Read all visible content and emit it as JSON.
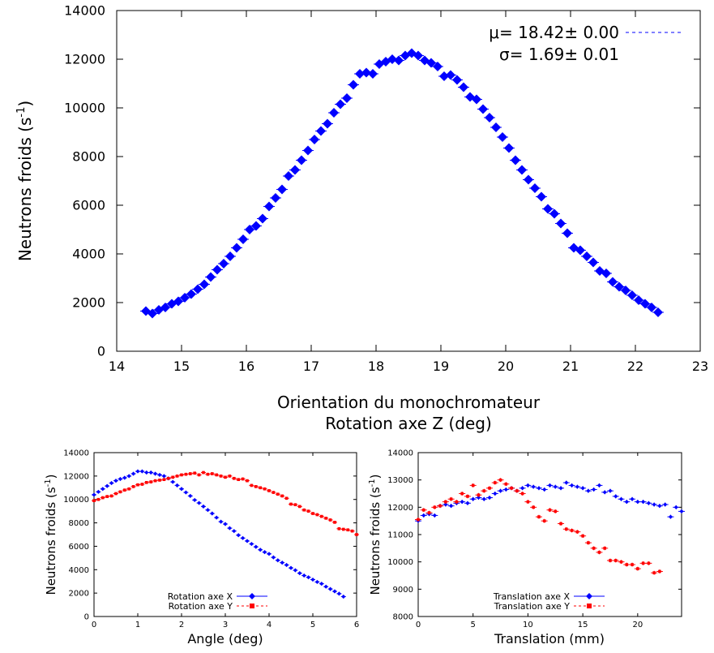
{
  "chart_data": [
    {
      "type": "scatter",
      "xlabel_line1": "Orientation du monochromateur",
      "xlabel_line2": "Rotation axe Z (deg)",
      "ylabel": "Neutrons froids (s",
      "ylabel_sup": "-1",
      "ylabel_end": ")",
      "xlim": [
        14,
        23
      ],
      "ylim": [
        0,
        14000
      ],
      "xticks": [
        14,
        15,
        16,
        17,
        18,
        19,
        20,
        21,
        22,
        23
      ],
      "yticks": [
        0,
        2000,
        4000,
        6000,
        8000,
        10000,
        12000,
        14000
      ],
      "grid": false,
      "legend_position": "top-right",
      "annotations": [
        "μ= 18.42± 0.00",
        "σ= 1.69± 0.01"
      ],
      "series": [
        {
          "color": "#0000ff",
          "marker": "diamond",
          "x": [
            14.45,
            14.55,
            14.65,
            14.75,
            14.85,
            14.95,
            15.05,
            15.15,
            15.25,
            15.35,
            15.45,
            15.55,
            15.65,
            15.75,
            15.85,
            15.95,
            16.05,
            16.15,
            16.25,
            16.35,
            16.45,
            16.55,
            16.65,
            16.75,
            16.85,
            16.95,
            17.05,
            17.15,
            17.25,
            17.35,
            17.45,
            17.55,
            17.65,
            17.75,
            17.85,
            17.95,
            18.05,
            18.15,
            18.25,
            18.35,
            18.45,
            18.55,
            18.65,
            18.75,
            18.85,
            18.95,
            19.05,
            19.15,
            19.25,
            19.35,
            19.45,
            19.55,
            19.65,
            19.75,
            19.85,
            19.95,
            20.05,
            20.15,
            20.25,
            20.35,
            20.45,
            20.55,
            20.65,
            20.75,
            20.85,
            20.95,
            21.05,
            21.15,
            21.25,
            21.35,
            21.45,
            21.55,
            21.65,
            21.75,
            21.85,
            21.95,
            22.05,
            22.15,
            22.25,
            22.35
          ],
          "y": [
            1650,
            1550,
            1700,
            1800,
            1950,
            2050,
            2200,
            2350,
            2550,
            2750,
            3050,
            3350,
            3600,
            3900,
            4250,
            4600,
            5000,
            5150,
            5450,
            5950,
            6300,
            6650,
            7200,
            7450,
            7850,
            8250,
            8700,
            9050,
            9350,
            9800,
            10150,
            10400,
            10950,
            11400,
            11450,
            11400,
            11800,
            11900,
            12000,
            11950,
            12150,
            12250,
            12150,
            11950,
            11850,
            11700,
            11300,
            11350,
            11150,
            10850,
            10450,
            10350,
            9950,
            9600,
            9200,
            8800,
            8350,
            7850,
            7450,
            7050,
            6700,
            6350,
            5850,
            5650,
            5250,
            4850,
            4250,
            4150,
            3900,
            3650,
            3300,
            3200,
            2850,
            2650,
            2500,
            2300,
            2100,
            1950,
            1800,
            1600
          ]
        }
      ]
    },
    {
      "type": "scatter",
      "xlabel": "Angle (deg)",
      "ylabel": "Neutrons froids (s",
      "ylabel_sup": "-1",
      "ylabel_end": ")",
      "xlim": [
        0,
        6
      ],
      "ylim": [
        0,
        14000
      ],
      "xticks": [
        0,
        1,
        2,
        3,
        4,
        5,
        6
      ],
      "yticks": [
        0,
        2000,
        4000,
        6000,
        8000,
        10000,
        12000,
        14000
      ],
      "grid": false,
      "legend_position": "bottom-center",
      "series": [
        {
          "name": "Rotation axe X",
          "color": "#0000ff",
          "marker": "diamond",
          "x": [
            0.0,
            0.1,
            0.2,
            0.3,
            0.4,
            0.5,
            0.6,
            0.7,
            0.8,
            0.9,
            1.0,
            1.1,
            1.2,
            1.3,
            1.4,
            1.5,
            1.6,
            1.7,
            1.8,
            1.9,
            2.0,
            2.1,
            2.2,
            2.3,
            2.4,
            2.5,
            2.6,
            2.7,
            2.8,
            2.9,
            3.0,
            3.1,
            3.2,
            3.3,
            3.4,
            3.5,
            3.6,
            3.7,
            3.8,
            3.9,
            4.0,
            4.1,
            4.2,
            4.3,
            4.4,
            4.5,
            4.6,
            4.7,
            4.8,
            4.9,
            5.0,
            5.1,
            5.2,
            5.3,
            5.4,
            5.5,
            5.6,
            5.7
          ],
          "y": [
            10400,
            10650,
            10900,
            11150,
            11400,
            11600,
            11750,
            11850,
            12000,
            12200,
            12400,
            12400,
            12300,
            12300,
            12200,
            12100,
            12000,
            11800,
            11500,
            11200,
            10900,
            10600,
            10300,
            9950,
            9700,
            9400,
            9100,
            8800,
            8450,
            8100,
            7900,
            7550,
            7300,
            6950,
            6700,
            6450,
            6200,
            5950,
            5700,
            5500,
            5350,
            5050,
            4800,
            4600,
            4400,
            4150,
            3950,
            3700,
            3500,
            3350,
            3150,
            2950,
            2800,
            2550,
            2350,
            2150,
            1950,
            1700
          ]
        },
        {
          "name": "Rotation axe Y",
          "color": "#ff0000",
          "marker": "square",
          "x": [
            0.0,
            0.1,
            0.2,
            0.3,
            0.4,
            0.5,
            0.6,
            0.7,
            0.8,
            0.9,
            1.0,
            1.1,
            1.2,
            1.3,
            1.4,
            1.5,
            1.6,
            1.7,
            1.8,
            1.9,
            2.0,
            2.1,
            2.2,
            2.3,
            2.4,
            2.5,
            2.6,
            2.7,
            2.8,
            2.9,
            3.0,
            3.1,
            3.2,
            3.3,
            3.4,
            3.5,
            3.6,
            3.7,
            3.8,
            3.9,
            4.0,
            4.1,
            4.2,
            4.3,
            4.4,
            4.5,
            4.6,
            4.7,
            4.8,
            4.9,
            5.0,
            5.1,
            5.2,
            5.3,
            5.4,
            5.5,
            5.6,
            5.7,
            5.8,
            5.9,
            6.0
          ],
          "y": [
            9900,
            10000,
            10150,
            10250,
            10300,
            10500,
            10650,
            10800,
            10900,
            11100,
            11250,
            11300,
            11450,
            11500,
            11600,
            11650,
            11700,
            11800,
            11900,
            12000,
            12100,
            12150,
            12200,
            12250,
            12100,
            12300,
            12150,
            12200,
            12100,
            12000,
            11900,
            12000,
            11800,
            11700,
            11750,
            11600,
            11200,
            11100,
            11000,
            10900,
            10750,
            10600,
            10450,
            10300,
            10100,
            9600,
            9550,
            9400,
            9100,
            9000,
            8800,
            8700,
            8550,
            8400,
            8250,
            8050,
            7500,
            7450,
            7400,
            7300,
            7000
          ]
        }
      ]
    },
    {
      "type": "scatter",
      "xlabel": "Translation (mm)",
      "ylabel": "Neutrons froids (s",
      "ylabel_sup": "-1",
      "ylabel_end": ")",
      "xlim": [
        0,
        24
      ],
      "ylim": [
        8000,
        14000
      ],
      "xticks": [
        0,
        5,
        10,
        15,
        20
      ],
      "yticks": [
        8000,
        9000,
        10000,
        11000,
        12000,
        13000,
        14000
      ],
      "grid": false,
      "legend_position": "bottom-center",
      "series": [
        {
          "name": "Translation axe X",
          "color": "#0000ff",
          "marker": "diamond",
          "x": [
            0,
            0.5,
            1,
            1.5,
            2,
            2.5,
            3,
            3.5,
            4,
            4.5,
            5,
            5.5,
            6,
            6.5,
            7,
            7.5,
            8,
            8.5,
            9,
            9.5,
            10,
            10.5,
            11,
            11.5,
            12,
            12.5,
            13,
            13.5,
            14,
            14.5,
            15,
            15.5,
            16,
            16.5,
            17,
            17.5,
            18,
            18.5,
            19,
            19.5,
            20,
            20.5,
            21,
            21.5,
            22,
            22.5,
            23,
            23.5,
            24
          ],
          "y": [
            11500,
            11700,
            11750,
            11700,
            12050,
            12100,
            12050,
            12150,
            12200,
            12150,
            12300,
            12350,
            12300,
            12350,
            12500,
            12600,
            12650,
            12700,
            12600,
            12700,
            12800,
            12750,
            12700,
            12650,
            12800,
            12750,
            12700,
            12900,
            12800,
            12750,
            12700,
            12600,
            12650,
            12800,
            12550,
            12600,
            12400,
            12300,
            12200,
            12300,
            12200,
            12200,
            12150,
            12100,
            12050,
            12100,
            11650,
            12000,
            11850
          ]
        },
        {
          "name": "Translation axe Y",
          "color": "#ff0000",
          "marker": "square",
          "x": [
            0,
            0.5,
            1,
            1.5,
            2,
            2.5,
            3,
            3.5,
            4,
            4.5,
            5,
            5.5,
            6,
            6.5,
            7,
            7.5,
            8,
            8.5,
            9,
            9.5,
            10,
            10.5,
            11,
            11.5,
            12,
            12.5,
            13,
            13.5,
            14,
            14.5,
            15,
            15.5,
            16,
            16.5,
            17,
            17.5,
            18,
            18.5,
            19,
            19.5,
            20,
            20.5,
            21,
            21.5,
            22
          ],
          "y": [
            11550,
            11900,
            11800,
            12000,
            12050,
            12200,
            12300,
            12200,
            12500,
            12400,
            12800,
            12450,
            12600,
            12700,
            12900,
            13000,
            12850,
            12700,
            12600,
            12500,
            12200,
            12000,
            11650,
            11500,
            11900,
            11850,
            11400,
            11200,
            11150,
            11100,
            10950,
            10700,
            10500,
            10350,
            10500,
            10050,
            10050,
            10000,
            9900,
            9900,
            9750,
            9950,
            9950,
            9600,
            9650
          ]
        }
      ]
    }
  ],
  "top_legend_symbol": "- - - - -"
}
